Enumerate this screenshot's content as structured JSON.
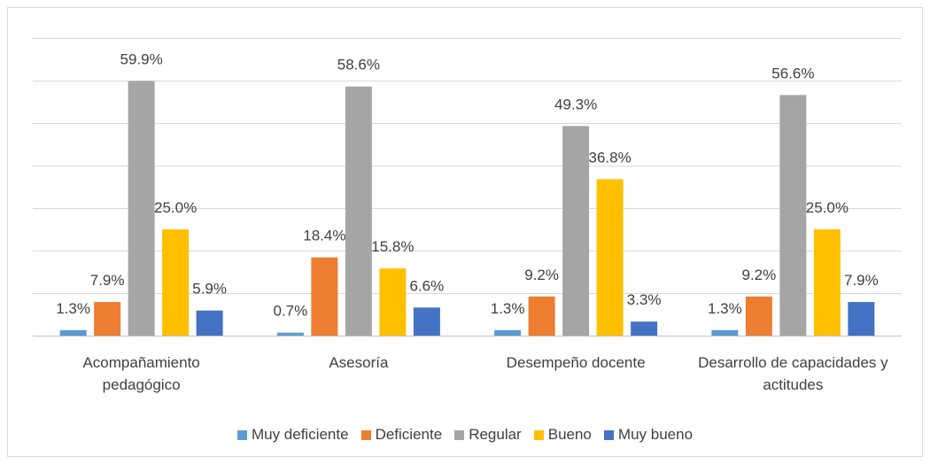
{
  "chart_data": {
    "type": "bar",
    "categories": [
      "Acompañamiento pedagógico",
      "Asesoría",
      "Desempeño docente",
      "Desarrollo de capacidades y actitudes"
    ],
    "series": [
      {
        "name": "Muy deficiente",
        "color": "#5b9bd5",
        "values": [
          1.3,
          0.7,
          1.3,
          1.3
        ],
        "value_labels": [
          "1.3%",
          "0.7%",
          "1.3%",
          "1.3%"
        ]
      },
      {
        "name": "Deficiente",
        "color": "#ed7d31",
        "values": [
          7.9,
          18.4,
          9.2,
          9.2
        ],
        "value_labels": [
          "7.9%",
          "18.4%",
          "9.2%",
          "9.2%"
        ]
      },
      {
        "name": "Regular",
        "color": "#a5a5a5",
        "values": [
          59.9,
          58.6,
          49.3,
          56.6
        ],
        "value_labels": [
          "59.9%",
          "58.6%",
          "49.3%",
          "56.6%"
        ]
      },
      {
        "name": "Bueno",
        "color": "#ffc000",
        "values": [
          25.0,
          15.8,
          36.8,
          25.0
        ],
        "value_labels": [
          "25.0%",
          "15.8%",
          "36.8%",
          "25.0%"
        ]
      },
      {
        "name": "Muy bueno",
        "color": "#4472c4",
        "values": [
          5.9,
          6.6,
          3.3,
          7.9
        ],
        "value_labels": [
          "5.9%",
          "6.6%",
          "3.3%",
          "7.9%"
        ]
      }
    ],
    "ylim": [
      0,
      70
    ],
    "yticks": [
      0,
      10,
      20,
      30,
      40,
      50,
      60,
      70
    ],
    "grid": true,
    "legend": "bottom"
  }
}
